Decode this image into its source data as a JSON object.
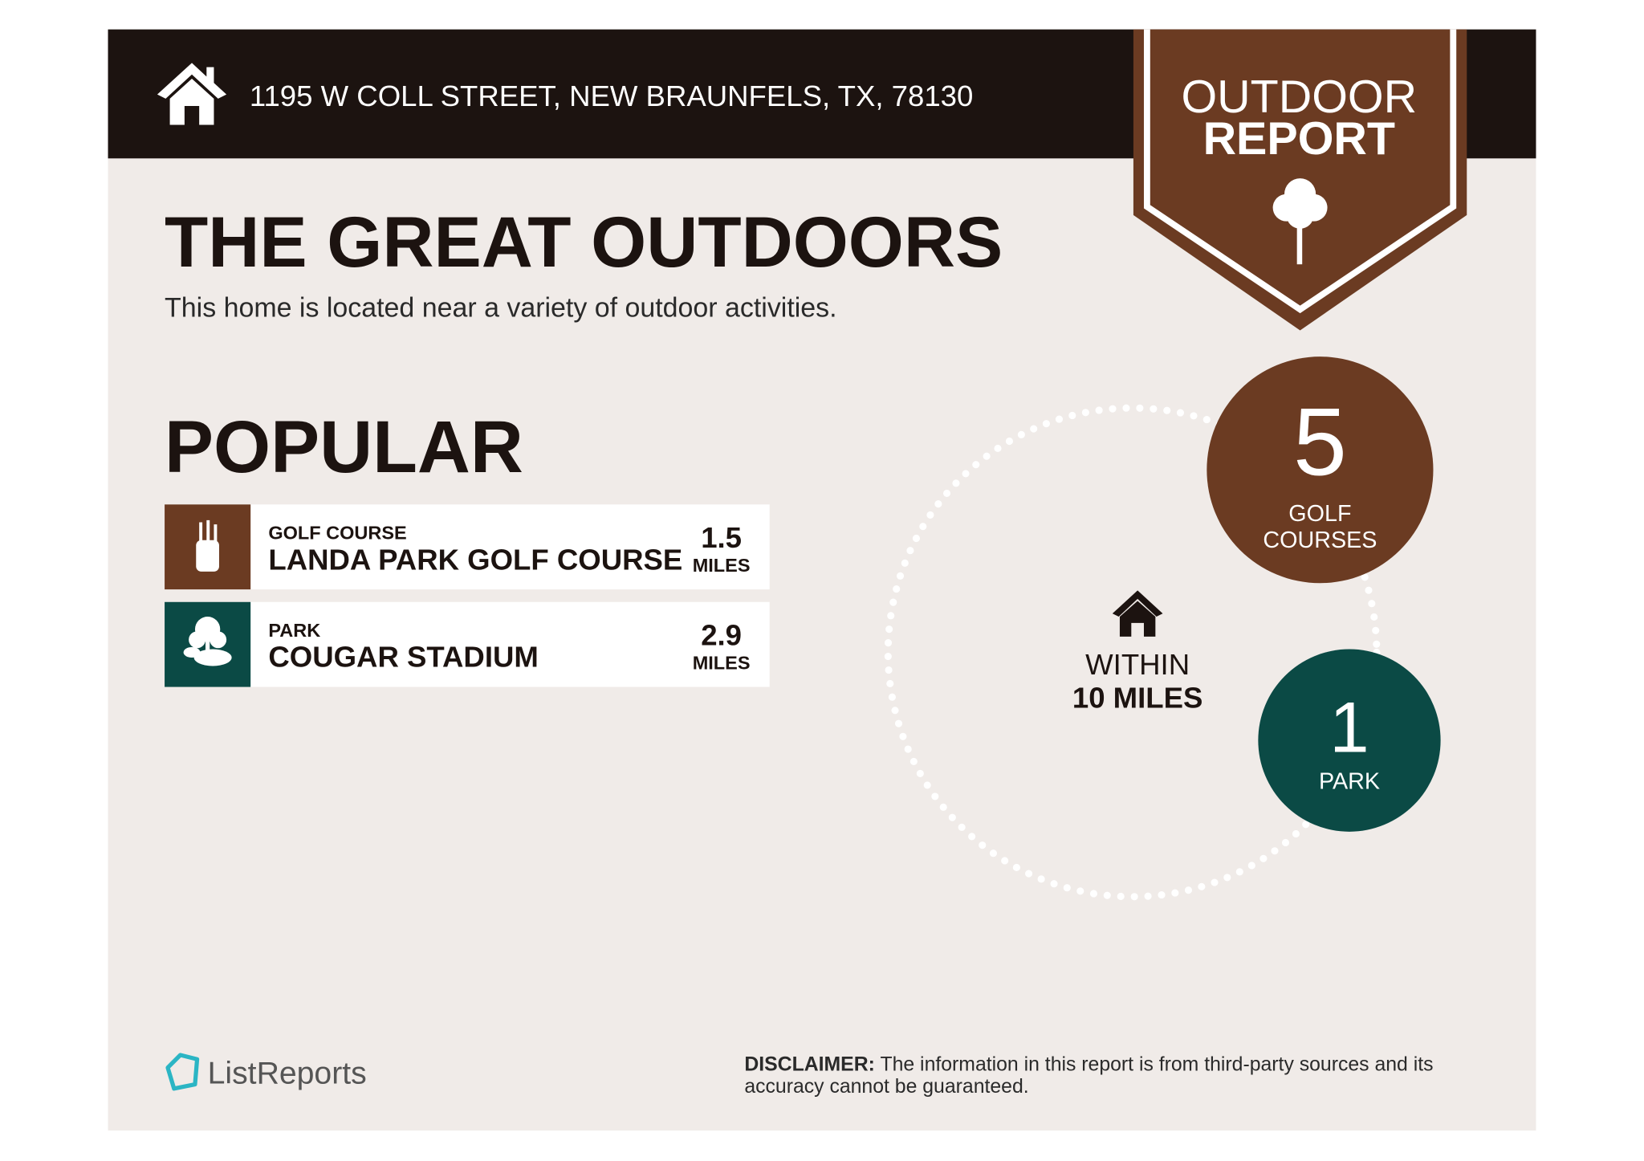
{
  "header": {
    "address": "1195 W COLL STREET, NEW BRAUNFELS, TX, 78130",
    "badge_line1": "OUTDOOR",
    "badge_line2": "REPORT"
  },
  "intro": {
    "title": "THE GREAT OUTDOORS",
    "subtitle": "This home is located near a variety of outdoor activities."
  },
  "popular": {
    "title": "POPULAR",
    "items": [
      {
        "category": "GOLF COURSE",
        "name": "LANDA PARK GOLF COURSE",
        "distance": "1.5",
        "unit": "MILES"
      },
      {
        "category": "PARK",
        "name": "COUGAR STADIUM",
        "distance": "2.9",
        "unit": "MILES"
      }
    ]
  },
  "radius": {
    "line1": "WITHIN",
    "line2": "10 MILES"
  },
  "counts": [
    {
      "count": "5",
      "label_line1": "GOLF",
      "label_line2": "COURSES"
    },
    {
      "count": "1",
      "label_line1": "PARK"
    }
  ],
  "footer": {
    "brand": "ListReports",
    "disclaimer_label": "DISCLAIMER:",
    "disclaimer_line1": "The information in this report is from third-party sources and its",
    "disclaimer_line2": "accuracy cannot be guaranteed."
  }
}
